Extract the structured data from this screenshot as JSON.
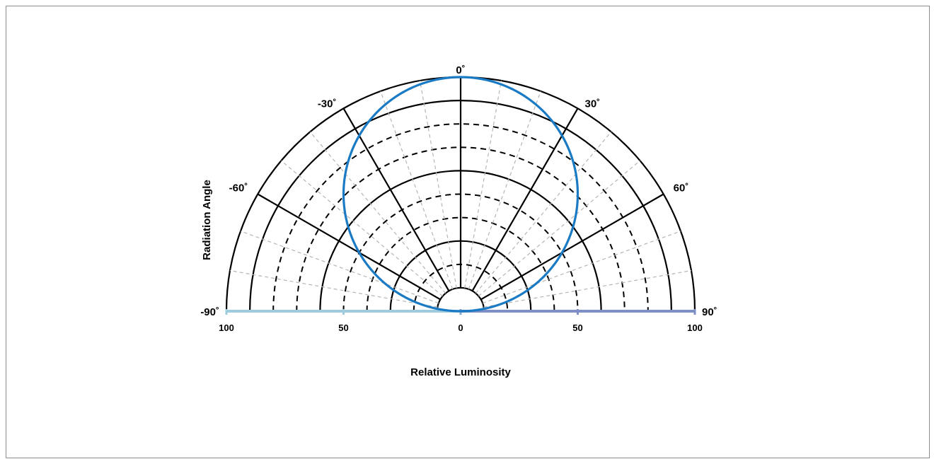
{
  "chart_data": {
    "type": "polar-radiation",
    "xlabel": "Relative Luminosity",
    "ylabel": "Radiation Angle",
    "angle_labels": [
      {
        "angle": -90,
        "text": "-90˚"
      },
      {
        "angle": -60,
        "text": "-60˚"
      },
      {
        "angle": -30,
        "text": "-30˚"
      },
      {
        "angle": 0,
        "text": "0˚"
      },
      {
        "angle": 30,
        "text": "30˚"
      },
      {
        "angle": 60,
        "text": "60˚"
      },
      {
        "angle": 90,
        "text": "90˚"
      }
    ],
    "radial_ticks": [
      {
        "value": -100,
        "text": "100"
      },
      {
        "value": -50,
        "text": "50"
      },
      {
        "value": 0,
        "text": "0"
      },
      {
        "value": 50,
        "text": "50"
      },
      {
        "value": 100,
        "text": "100"
      }
    ],
    "rlim": [
      0,
      100
    ],
    "solid_rings": [
      10,
      30,
      60,
      90,
      100
    ],
    "dashed_rings": [
      20,
      40,
      50,
      70,
      80
    ],
    "solid_spoke_angles": [
      -90,
      -60,
      -30,
      0,
      30,
      60,
      90
    ],
    "series": [
      {
        "color": "#1a7ac4",
        "angles": [
          -90,
          -80,
          -70,
          -60,
          -50,
          -40,
          -30,
          -20,
          -10,
          0,
          10,
          20,
          30,
          40,
          50,
          60,
          70,
          80,
          90
        ],
        "values": [
          0,
          17.4,
          34.2,
          50,
          64.3,
          76.6,
          86.6,
          94,
          98.5,
          100,
          98.5,
          94,
          86.6,
          76.6,
          64.3,
          50,
          34.2,
          17.4,
          0
        ]
      }
    ],
    "base_colors": {
      "left": "#9fcbdf",
      "right": "#7d8fc6"
    }
  }
}
